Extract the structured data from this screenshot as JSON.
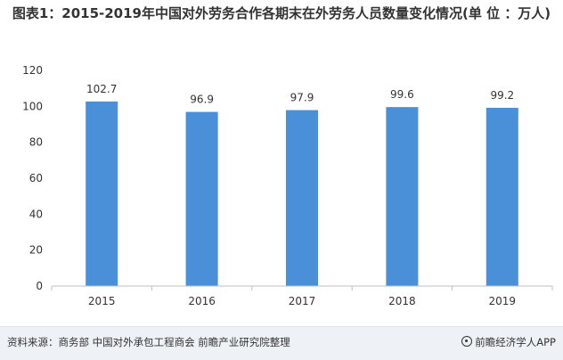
{
  "title": "图表1：2015-2019年中国对外劳务合作各期末在外劳务人员数量变化情况(单 位 ：万人)",
  "footer": {
    "source": "资料来源：商务部 中国对外承包工程商会 前瞻产业研究院整理",
    "brand": "前瞻经济学人APP"
  },
  "colors": {
    "bar": "#4a90d9",
    "axis": "#bfbfbf",
    "text": "#333333"
  },
  "chart_data": {
    "type": "bar",
    "categories": [
      "2015",
      "2016",
      "2017",
      "2018",
      "2019"
    ],
    "values": [
      102.7,
      96.9,
      97.9,
      99.6,
      99.2
    ],
    "data_labels": [
      "102.7",
      "96.9",
      "97.9",
      "99.6",
      "99.2"
    ],
    "ylim": [
      0,
      120
    ],
    "yticks": [
      0,
      20,
      40,
      60,
      80,
      100,
      120
    ],
    "grid": false,
    "xlabel": "",
    "ylabel": ""
  }
}
